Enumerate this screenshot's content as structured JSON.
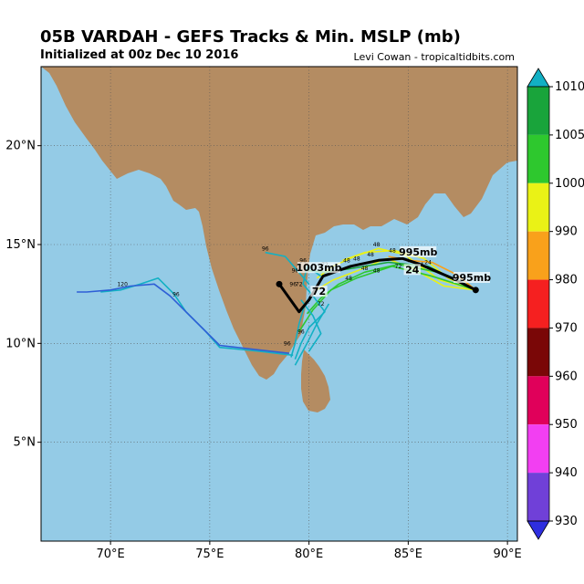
{
  "header": {
    "title": "05B VARDAH - GEFS Tracks & Min. MSLP (mb)",
    "subtitle": "Initialized at 00z Dec 10 2016",
    "credit": "Levi Cowan - tropicaltidbits.com"
  },
  "map": {
    "lon_range": [
      66.5,
      90.5
    ],
    "lat_range": [
      0,
      24
    ],
    "ocean_color": "#94cbe6",
    "land_color": "#b48c62",
    "lon_ticks": [
      70,
      75,
      80,
      85,
      90
    ],
    "lon_tick_labels": [
      "70°E",
      "75°E",
      "80°E",
      "85°E",
      "90°E"
    ],
    "lat_ticks": [
      5,
      10,
      15,
      20
    ],
    "lat_tick_labels": [
      "5°N",
      "10°N",
      "15°N",
      "20°N"
    ]
  },
  "colorbar": {
    "levels": [
      "1010",
      "1005",
      "1000",
      "990",
      "980",
      "970",
      "960",
      "950",
      "940",
      "930"
    ],
    "colors": [
      "#12b0c4",
      "#19a43b",
      "#2ec82e",
      "#eaf216",
      "#f9a11b",
      "#f52020",
      "#7a0707",
      "#e0005a",
      "#f23ff2",
      "#7040d8",
      "#2e2ee0"
    ]
  },
  "chart_data": {
    "type": "map-tracks",
    "mean_track": {
      "points": [
        [
          88.4,
          12.7
        ],
        [
          87.2,
          13.3
        ],
        [
          85.6,
          14.0
        ],
        [
          84.7,
          14.3
        ],
        [
          83.5,
          14.2
        ],
        [
          82.1,
          13.9
        ],
        [
          80.7,
          13.4
        ],
        [
          80.0,
          12.2
        ],
        [
          79.5,
          11.6
        ],
        [
          78.5,
          13.0
        ]
      ],
      "labels": [
        {
          "text": "995mb",
          "lon": 88.2,
          "lat": 13.2
        },
        {
          "text": "995mb",
          "lon": 85.5,
          "lat": 14.5
        },
        {
          "text": "24",
          "lon": 85.2,
          "lat": 13.6
        },
        {
          "text": "1003mb",
          "lon": 80.5,
          "lat": 13.7
        },
        {
          "text": "72",
          "lon": 80.5,
          "lat": 12.5
        }
      ]
    },
    "member_tracks": [
      {
        "color": "#eaf216",
        "points": [
          [
            88.4,
            12.7
          ],
          [
            86.6,
            13.2
          ],
          [
            84.8,
            14.5
          ],
          [
            83.5,
            14.8
          ],
          [
            82.3,
            14.4
          ],
          [
            81.2,
            13.9
          ],
          [
            80.4,
            13.3
          ]
        ]
      },
      {
        "color": "#eaf216",
        "points": [
          [
            88.4,
            12.7
          ],
          [
            86.8,
            12.9
          ],
          [
            85.2,
            13.8
          ],
          [
            83.9,
            14.3
          ],
          [
            82.5,
            13.7
          ],
          [
            81.2,
            13.2
          ],
          [
            80.2,
            12.6
          ]
        ]
      },
      {
        "color": "#eaf216",
        "points": [
          [
            88.4,
            12.7
          ],
          [
            87.0,
            13.3
          ],
          [
            85.8,
            14.3
          ],
          [
            84.3,
            14.7
          ],
          [
            82.8,
            14.6
          ],
          [
            81.7,
            14.2
          ]
        ]
      },
      {
        "color": "#2ec82e",
        "points": [
          [
            88.4,
            12.7
          ],
          [
            86.5,
            13.6
          ],
          [
            84.5,
            14.0
          ],
          [
            82.8,
            13.6
          ],
          [
            81.5,
            13.0
          ],
          [
            80.6,
            12.3
          ],
          [
            79.9,
            11.5
          ]
        ]
      },
      {
        "color": "#2ec82e",
        "points": [
          [
            88.4,
            12.7
          ],
          [
            86.2,
            13.4
          ],
          [
            84.2,
            13.9
          ],
          [
            82.4,
            13.3
          ],
          [
            81.1,
            12.7
          ],
          [
            80.2,
            11.7
          ],
          [
            79.5,
            10.6
          ]
        ]
      },
      {
        "color": "#19a43b",
        "points": [
          [
            88.4,
            12.7
          ],
          [
            86.0,
            13.9
          ],
          [
            84.0,
            14.1
          ],
          [
            82.2,
            13.8
          ],
          [
            80.8,
            13.6
          ],
          [
            79.8,
            13.7
          ]
        ]
      },
      {
        "color": "#f9a11b",
        "points": [
          [
            88.4,
            12.7
          ],
          [
            87.4,
            13.5
          ],
          [
            86.2,
            14.1
          ],
          [
            85.0,
            14.2
          ],
          [
            84.0,
            14.4
          ]
        ]
      },
      {
        "color": "#12b0c4",
        "points": [
          [
            80.6,
            13.4
          ],
          [
            79.9,
            13.9
          ],
          [
            79.7,
            13.0
          ],
          [
            80.2,
            12.4
          ],
          [
            80.8,
            11.6
          ],
          [
            80.0,
            10.8
          ],
          [
            79.6,
            10.0
          ],
          [
            79.3,
            9.2
          ]
        ]
      },
      {
        "color": "#12b0c4",
        "points": [
          [
            80.4,
            12.8
          ],
          [
            79.8,
            12.0
          ],
          [
            79.5,
            11.0
          ],
          [
            79.3,
            10.0
          ],
          [
            79.1,
            9.3
          ]
        ]
      },
      {
        "color": "#12b0c4",
        "points": [
          [
            81.0,
            12.0
          ],
          [
            80.4,
            11.0
          ],
          [
            79.9,
            10.0
          ],
          [
            79.3,
            8.9
          ]
        ]
      },
      {
        "color": "#12b0c4",
        "points": [
          [
            80.0,
            13.0
          ],
          [
            79.4,
            13.7
          ],
          [
            78.8,
            14.4
          ],
          [
            77.8,
            14.6
          ]
        ]
      },
      {
        "color": "#12b0c4",
        "points": [
          [
            79.2,
            9.4
          ],
          [
            77.5,
            9.6
          ],
          [
            75.5,
            9.8
          ],
          [
            74.8,
            10.6
          ],
          [
            73.8,
            11.6
          ],
          [
            73.2,
            12.5
          ],
          [
            72.4,
            13.3
          ],
          [
            71.5,
            13.0
          ],
          [
            70.5,
            12.7
          ],
          [
            69.5,
            12.6
          ]
        ]
      },
      {
        "color": "#2e5fd6",
        "points": [
          [
            79.0,
            9.5
          ],
          [
            77.2,
            9.7
          ],
          [
            75.5,
            9.9
          ],
          [
            74.6,
            10.8
          ],
          [
            73.8,
            11.6
          ],
          [
            73.0,
            12.4
          ],
          [
            72.2,
            13.0
          ],
          [
            71.0,
            12.9
          ],
          [
            70.0,
            12.7
          ],
          [
            68.8,
            12.6
          ],
          [
            68.3,
            12.6
          ]
        ]
      },
      {
        "color": "#12b0c4",
        "points": [
          [
            79.6,
            12.2
          ],
          [
            80.2,
            11.4
          ],
          [
            80.6,
            10.5
          ],
          [
            80.0,
            9.6
          ]
        ]
      }
    ],
    "hour_labels": [
      {
        "text": "96",
        "lon": 77.8,
        "lat": 14.7
      },
      {
        "text": "96",
        "lon": 79.7,
        "lat": 14.1
      },
      {
        "text": "96",
        "lon": 79.3,
        "lat": 13.6
      },
      {
        "text": "96",
        "lon": 79.2,
        "lat": 12.9
      },
      {
        "text": "96",
        "lon": 79.6,
        "lat": 10.5
      },
      {
        "text": "96",
        "lon": 78.9,
        "lat": 9.9
      },
      {
        "text": "96",
        "lon": 73.3,
        "lat": 12.4
      },
      {
        "text": "120",
        "lon": 70.6,
        "lat": 12.9
      },
      {
        "text": "72",
        "lon": 80.8,
        "lat": 13.9
      },
      {
        "text": "72",
        "lon": 79.5,
        "lat": 12.9
      },
      {
        "text": "72",
        "lon": 80.6,
        "lat": 11.9
      },
      {
        "text": "72",
        "lon": 84.5,
        "lat": 13.8
      },
      {
        "text": "48",
        "lon": 81.9,
        "lat": 14.1
      },
      {
        "text": "48",
        "lon": 82.4,
        "lat": 14.2
      },
      {
        "text": "48",
        "lon": 83.1,
        "lat": 14.4
      },
      {
        "text": "48",
        "lon": 83.4,
        "lat": 14.9
      },
      {
        "text": "48",
        "lon": 84.2,
        "lat": 14.6
      },
      {
        "text": "48",
        "lon": 82.8,
        "lat": 13.7
      },
      {
        "text": "48",
        "lon": 83.4,
        "lat": 13.6
      },
      {
        "text": "48",
        "lon": 82.0,
        "lat": 13.2
      },
      {
        "text": "24",
        "lon": 85.6,
        "lat": 13.9
      },
      {
        "text": "24",
        "lon": 86.0,
        "lat": 14.0
      }
    ]
  }
}
